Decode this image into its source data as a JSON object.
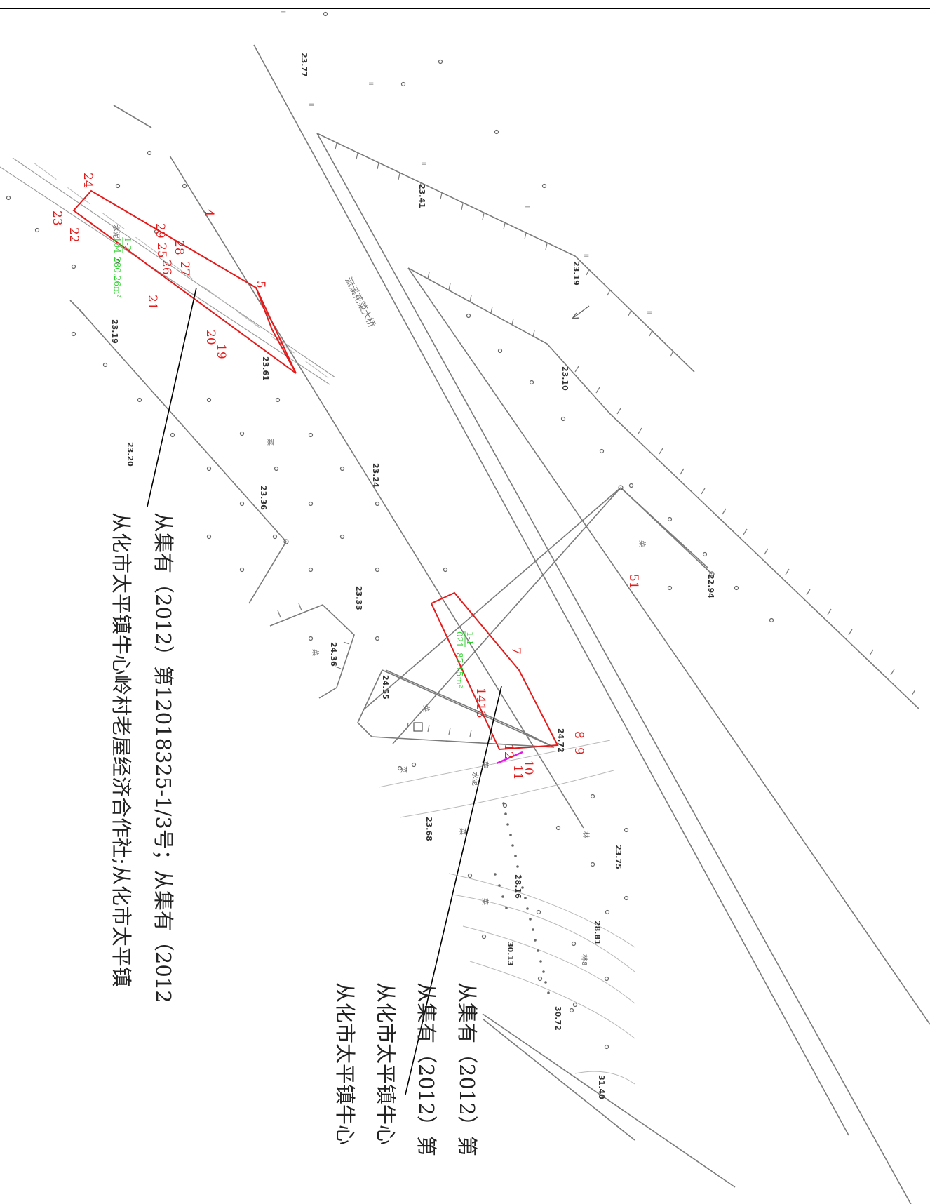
{
  "road_name": "流溪花菜大桥",
  "parcel_a": {
    "corner_labels": [
      "24",
      "23",
      "22",
      "29",
      "28",
      "27",
      "25",
      "26",
      "21",
      "20",
      "19",
      "4",
      "5"
    ],
    "area_fraction": "1-2",
    "area_denominator": "104",
    "area_value": "280.26m²"
  },
  "parcel_b": {
    "corner_labels": [
      "7",
      "14",
      "13",
      "12",
      "11",
      "10",
      "8",
      "9"
    ],
    "area_fraction": "1-1",
    "area_denominator": "021",
    "area_value": "87.15m²"
  },
  "other_labels": [
    "51"
  ],
  "elevations": [
    "23.77",
    "23.41",
    "23.19",
    "23.10",
    "23.61",
    "23.19",
    "23.20",
    "23.24",
    "23.36",
    "23.33",
    "24.36",
    "24.55",
    "24.72",
    "22.94",
    "23.68",
    "23.75",
    "28.16",
    "28.81",
    "30.13",
    "30.72",
    "31.40"
  ],
  "ground_symbols": [
    "菜",
    "菜",
    "菜",
    "菜",
    "菜",
    "菜",
    "菜",
    "菜",
    "水泥",
    "水泥",
    "林",
    "林8"
  ],
  "lot_label_left": [
    "从集有（2012）第12018325-1/3号；从集有（2012",
    "从化市太平镇牛心岭村老屋经济合作社;从化市太平镇"
  ],
  "lot_label_right": [
    "从集有（2012）第",
    "从集有（2012）第",
    "从化市太平镇牛心",
    "从化市太平镇牛心"
  ]
}
